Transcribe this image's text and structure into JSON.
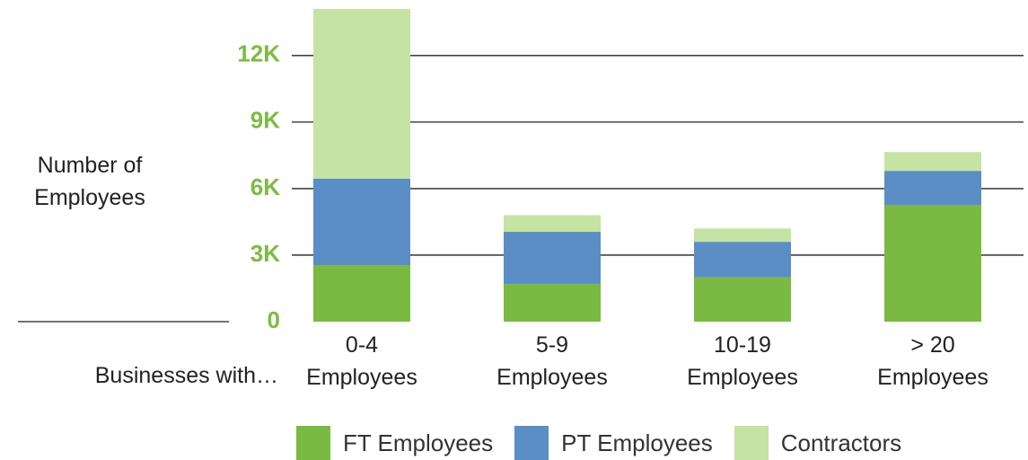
{
  "chart_data": {
    "type": "stacked_bar",
    "y_label": "Number of Employees",
    "x_label": "Businesses with…",
    "categories": [
      "0-4 Employees",
      "5-9 Employees",
      "10-19 Employees",
      "> 20 Employees"
    ],
    "series": [
      {
        "name": "FT Employees",
        "color": "#7aba42",
        "values": [
          2550,
          1700,
          2000,
          5250
        ]
      },
      {
        "name": "PT Employees",
        "color": "#5b8ec4",
        "values": [
          3900,
          2350,
          1600,
          1550
        ]
      },
      {
        "name": "Contractors",
        "color": "#c5e3a2",
        "values": [
          7650,
          750,
          600,
          850
        ]
      }
    ],
    "ylim": [
      0,
      14100
    ],
    "yticks": [
      0,
      {
        "value": 3000,
        "label": "3K"
      },
      {
        "value": 6000,
        "label": "6K"
      },
      {
        "value": 9000,
        "label": "9K"
      },
      {
        "value": 12000,
        "label": "12K"
      }
    ],
    "grid": true
  }
}
